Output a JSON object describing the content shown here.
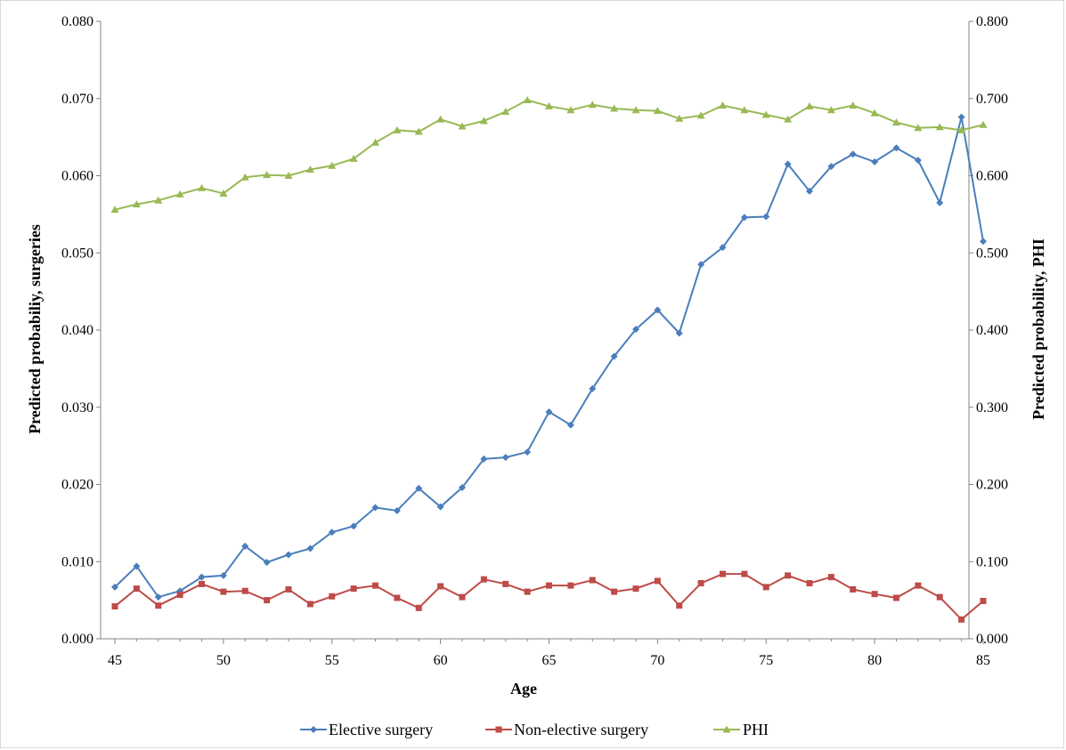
{
  "chart_data": {
    "type": "line",
    "title": "",
    "xlabel": "Age",
    "ylabel_left": "Predicted probabiliy, surgeries",
    "ylabel_right": "Predicted probability, PHI",
    "xlim": [
      45,
      85
    ],
    "x_ticks": [
      "45",
      "50",
      "55",
      "60",
      "65",
      "70",
      "75",
      "80",
      "85"
    ],
    "ylim_left": [
      0,
      0.08
    ],
    "y_ticks_left": [
      "0.000",
      "0.010",
      "0.020",
      "0.030",
      "0.040",
      "0.050",
      "0.060",
      "0.070",
      "0.080"
    ],
    "ylim_right": [
      0,
      0.8
    ],
    "y_ticks_right": [
      "0.000",
      "0.100",
      "0.200",
      "0.300",
      "0.400",
      "0.500",
      "0.600",
      "0.700",
      "0.800"
    ],
    "grid": false,
    "legend_position": "bottom",
    "x": [
      45,
      46,
      47,
      48,
      49,
      50,
      51,
      52,
      53,
      54,
      55,
      56,
      57,
      58,
      59,
      60,
      61,
      62,
      63,
      64,
      65,
      66,
      67,
      68,
      69,
      70,
      71,
      72,
      73,
      74,
      75,
      76,
      77,
      78,
      79,
      80,
      81,
      82,
      83,
      84,
      85
    ],
    "series": [
      {
        "name": "Elective surgery",
        "axis": "left",
        "color": "#4a7ebb",
        "marker": "diamond",
        "values": [
          0.0067,
          0.0094,
          0.0054,
          0.0062,
          0.008,
          0.0082,
          0.012,
          0.0099,
          0.0109,
          0.0117,
          0.0138,
          0.0146,
          0.017,
          0.0166,
          0.0195,
          0.0171,
          0.0196,
          0.0233,
          0.0235,
          0.0242,
          0.0294,
          0.0277,
          0.0324,
          0.0366,
          0.0401,
          0.0426,
          0.0396,
          0.0485,
          0.0507,
          0.0546,
          0.0547,
          0.0615,
          0.058,
          0.0612,
          0.0628,
          0.0618,
          0.0636,
          0.062,
          0.0565,
          0.0676,
          0.0515
        ]
      },
      {
        "name": "Non-elective surgery",
        "axis": "left",
        "color": "#be4b48",
        "marker": "square",
        "values": [
          0.0042,
          0.0065,
          0.0043,
          0.0057,
          0.0071,
          0.0061,
          0.0062,
          0.005,
          0.0064,
          0.0045,
          0.0055,
          0.0065,
          0.0069,
          0.0053,
          0.004,
          0.0068,
          0.0054,
          0.0077,
          0.0071,
          0.0061,
          0.0069,
          0.0069,
          0.0076,
          0.0061,
          0.0065,
          0.0075,
          0.0043,
          0.0072,
          0.0084,
          0.0084,
          0.0067,
          0.0082,
          0.0072,
          0.008,
          0.0064,
          0.0058,
          0.0053,
          0.0069,
          0.0054,
          0.0025,
          0.0049
        ]
      },
      {
        "name": "PHI",
        "axis": "right",
        "color": "#98b954",
        "marker": "triangle",
        "values": [
          0.556,
          0.563,
          0.568,
          0.576,
          0.584,
          0.577,
          0.598,
          0.601,
          0.6,
          0.608,
          0.613,
          0.622,
          0.643,
          0.659,
          0.657,
          0.673,
          0.664,
          0.671,
          0.683,
          0.698,
          0.69,
          0.685,
          0.692,
          0.687,
          0.685,
          0.684,
          0.674,
          0.678,
          0.691,
          0.685,
          0.679,
          0.673,
          0.69,
          0.685,
          0.691,
          0.681,
          0.669,
          0.662,
          0.663,
          0.659,
          0.666
        ]
      }
    ]
  }
}
